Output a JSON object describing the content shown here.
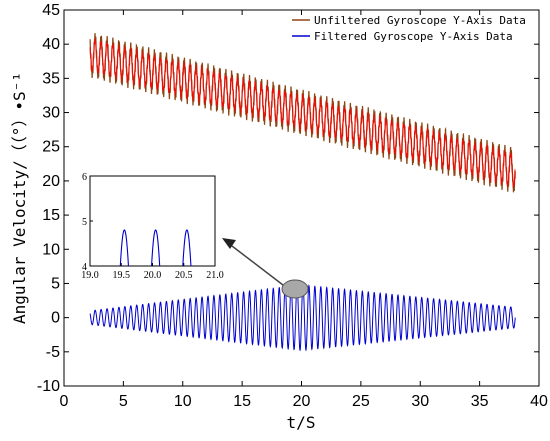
{
  "chart_data": {
    "type": "line",
    "xlabel": "t/S",
    "ylabel": "Angular Velocity/（（°）•S⁻¹",
    "xlim": [
      0,
      40
    ],
    "ylim": [
      -10,
      45
    ],
    "x_ticks": [
      "0",
      "5",
      "10",
      "15",
      "20",
      "25",
      "30",
      "35",
      "40"
    ],
    "y_ticks": [
      "-10",
      "-5",
      "0",
      "5",
      "10",
      "15",
      "20",
      "25",
      "30",
      "35",
      "40",
      "45"
    ],
    "grid": false,
    "legend_position": "top-right",
    "series": [
      {
        "name": "Unfiltered Gyroscope Y-Axis Data",
        "color": "#8b4513",
        "highlight_color": "#ff0000",
        "t_start": 2.2,
        "t_end": 38.0,
        "trend_start": 38.5,
        "trend_end": 21.5,
        "amplitude": 2.8,
        "cycles_per_second": 2.0
      },
      {
        "name": "Filtered Gyroscope Y-Axis Data",
        "color": "#0000cd",
        "t_start": 2.2,
        "t_end": 38.0,
        "center": 0.0,
        "amplitude_start": 1.0,
        "amplitude_peak": 4.8,
        "peak_time": 20.0,
        "amplitude_end": 1.5,
        "cycles_per_second": 2.0
      }
    ],
    "inset": {
      "xlim": [
        19.0,
        21.0
      ],
      "ylim": [
        4,
        6
      ],
      "x_ticks": [
        "19.0",
        "19.5",
        "20.0",
        "20.5",
        "21.0"
      ],
      "y_ticks": [
        "4",
        "5",
        "6"
      ],
      "peaks": [
        {
          "t": 19.55,
          "value": 4.8
        },
        {
          "t": 20.05,
          "value": 4.8
        },
        {
          "t": 20.55,
          "value": 4.8
        }
      ],
      "zoom_region": {
        "t": 20.0,
        "value": 4.8
      }
    }
  }
}
